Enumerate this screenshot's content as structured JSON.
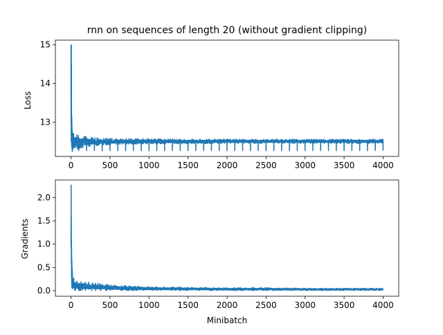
{
  "chart_data": [
    {
      "type": "line",
      "title": "rnn on sequences of length 20 (without gradient clipping)",
      "xlabel": "",
      "ylabel": "Loss",
      "xlim": [
        -200,
        4200
      ],
      "ylim": [
        12.12,
        15.12
      ],
      "x_ticks": [
        0,
        500,
        1000,
        1500,
        2000,
        2500,
        3000,
        3500,
        4000
      ],
      "y_ticks": [
        13,
        14,
        15
      ],
      "color": "#1f77b4",
      "series": [
        {
          "x": [
            0,
            2,
            4,
            6,
            8,
            10,
            12,
            14,
            16,
            20,
            25,
            30,
            40,
            50,
            60,
            70,
            80,
            100,
            150,
            200,
            300,
            400,
            500,
            700,
            1000,
            1500,
            2000,
            2500,
            3000,
            3500,
            4000
          ],
          "values": [
            14.95,
            13.9,
            14.99,
            14.3,
            13.1,
            13.12,
            12.9,
            12.75,
            12.6,
            12.45,
            12.38,
            12.52,
            12.48,
            12.6,
            12.55,
            12.62,
            12.6,
            12.58,
            12.56,
            12.54,
            12.53,
            12.52,
            12.52,
            12.52,
            12.51,
            12.51,
            12.51,
            12.51,
            12.51,
            12.51,
            12.51
          ],
          "band_upper": [
            15.0,
            15.0,
            15.0,
            14.5,
            13.2,
            13.15,
            13.0,
            12.85,
            12.8,
            12.72,
            12.7,
            12.72,
            12.7,
            12.7,
            12.68,
            12.68,
            12.67,
            12.66,
            12.64,
            12.62,
            12.6,
            12.59,
            12.58,
            12.57,
            12.57,
            12.56,
            12.56,
            12.56,
            12.56,
            12.56,
            12.56
          ],
          "band_lower": [
            13.0,
            12.4,
            12.3,
            12.25,
            12.25,
            12.3,
            12.3,
            12.28,
            12.25,
            12.2,
            12.2,
            12.22,
            12.25,
            12.25,
            12.3,
            12.3,
            12.32,
            12.33,
            12.35,
            12.37,
            12.4,
            12.42,
            12.43,
            12.44,
            12.45,
            12.45,
            12.46,
            12.46,
            12.46,
            12.46,
            12.46
          ],
          "dip_interval": 100,
          "dip_start": 100,
          "dip_value": 12.27
        }
      ]
    },
    {
      "type": "line",
      "title": "",
      "xlabel": "Minibatch",
      "ylabel": "Gradients",
      "xlim": [
        -200,
        4200
      ],
      "ylim": [
        -0.12,
        2.38
      ],
      "x_ticks": [
        0,
        500,
        1000,
        1500,
        2000,
        2500,
        3000,
        3500,
        4000
      ],
      "y_ticks": [
        0.0,
        0.5,
        1.0,
        1.5,
        2.0
      ],
      "y_tick_labels": [
        "0.0",
        "0.5",
        "1.0",
        "1.5",
        "2.0"
      ],
      "color": "#1f77b4",
      "series": [
        {
          "x": [
            0,
            2,
            4,
            6,
            8,
            10,
            14,
            20,
            30,
            40,
            60,
            80,
            100,
            150,
            200,
            300,
            400,
            500,
            700,
            1000,
            1500,
            2000,
            2500,
            3000,
            3500,
            4000
          ],
          "values": [
            1.0,
            2.27,
            1.4,
            1.0,
            0.8,
            0.6,
            0.35,
            0.2,
            0.12,
            0.1,
            0.09,
            0.08,
            0.08,
            0.07,
            0.07,
            0.06,
            0.05,
            0.05,
            0.04,
            0.035,
            0.03,
            0.025,
            0.02,
            0.02,
            0.02,
            0.02
          ],
          "band_upper": [
            1.38,
            2.27,
            1.7,
            1.1,
            0.9,
            0.75,
            0.5,
            0.35,
            0.3,
            0.25,
            0.22,
            0.2,
            0.2,
            0.19,
            0.18,
            0.16,
            0.15,
            0.12,
            0.1,
            0.08,
            0.07,
            0.06,
            0.06,
            0.05,
            0.05,
            0.05
          ],
          "band_lower": [
            0.8,
            1.0,
            0.4,
            0.2,
            0.1,
            0.05,
            0.02,
            0.01,
            0.01,
            0.01,
            0.01,
            0.01,
            0.005,
            0.005,
            0.005,
            0.005,
            0.005,
            0.005,
            0.005,
            0.005,
            0.005,
            0.005,
            0.005,
            0.005,
            0.005,
            0.005
          ]
        }
      ]
    }
  ]
}
